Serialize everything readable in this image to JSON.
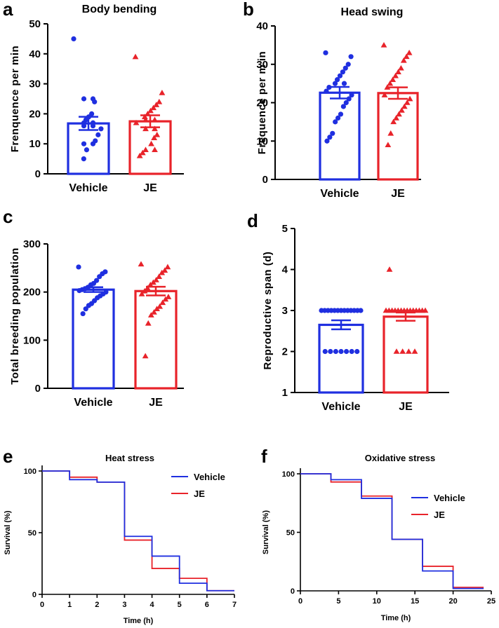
{
  "colors": {
    "vehicle": "#1f2fe0",
    "je": "#e8232a",
    "axis": "#000000"
  },
  "chart_data": [
    {
      "panel": "a",
      "type": "bar",
      "title": "Body bending",
      "ylabel": "Frenquence per min",
      "xlabel": "",
      "categories": [
        "Vehicle",
        "JE"
      ],
      "ylim": [
        0,
        50
      ],
      "yticks": [
        0,
        10,
        20,
        30,
        40,
        50
      ],
      "bars": [
        {
          "name": "Vehicle",
          "mean": 16.8,
          "sem": 2.2,
          "points": [
            45,
            25,
            25,
            24,
            20,
            19,
            18,
            17,
            17,
            16,
            16,
            15,
            13,
            11,
            10,
            10,
            8,
            5
          ]
        },
        {
          "name": "JE",
          "mean": 17.5,
          "sem": 2.0,
          "points": [
            39,
            27,
            24,
            23,
            22,
            21,
            20,
            19,
            18,
            18,
            17,
            15,
            15,
            13,
            12,
            10,
            8,
            8,
            7,
            6
          ]
        }
      ]
    },
    {
      "panel": "b",
      "type": "bar",
      "title": "Head swing",
      "ylabel": "Frequence per m in",
      "xlabel": "",
      "categories": [
        "Vehicle",
        "JE"
      ],
      "ylim": [
        0,
        40
      ],
      "yticks": [
        0,
        10,
        20,
        30,
        40
      ],
      "bars": [
        {
          "name": "Vehicle",
          "mean": 22.6,
          "sem": 1.5,
          "points": [
            33,
            32,
            30,
            29,
            28,
            27,
            26,
            25,
            25,
            24,
            23,
            22,
            21,
            20,
            19,
            17,
            16,
            15,
            12,
            11,
            10
          ]
        },
        {
          "name": "JE",
          "mean": 22.5,
          "sem": 1.5,
          "points": [
            35,
            33,
            32,
            31,
            29,
            28,
            27,
            26,
            25,
            24,
            22,
            21,
            20,
            19,
            18,
            17,
            16,
            15,
            12,
            9
          ]
        }
      ]
    },
    {
      "panel": "c",
      "type": "bar",
      "title": "",
      "ylabel": "Total breeding population",
      "xlabel": "",
      "categories": [
        "Vehicle",
        "JE"
      ],
      "ylim": [
        0,
        300
      ],
      "yticks": [
        0,
        100,
        200,
        300
      ],
      "bars": [
        {
          "name": "Vehicle",
          "mean": 205,
          "sem": 5,
          "points": [
            252,
            242,
            238,
            232,
            224,
            218,
            215,
            210,
            207,
            205,
            203,
            200,
            196,
            192,
            188,
            182,
            176,
            172,
            165,
            155
          ]
        },
        {
          "name": "JE",
          "mean": 202,
          "sem": 9,
          "points": [
            258,
            252,
            245,
            240,
            232,
            225,
            220,
            215,
            208,
            202,
            196,
            190,
            185,
            178,
            170,
            165,
            158,
            152,
            135,
            67
          ]
        }
      ]
    },
    {
      "panel": "d",
      "type": "bar",
      "title": "",
      "ylabel": "Reproductive span (d)",
      "xlabel": "",
      "categories": [
        "Vehicle",
        "JE"
      ],
      "ylim": [
        1,
        5
      ],
      "yticks": [
        1,
        2,
        3,
        4,
        5
      ],
      "bars": [
        {
          "name": "Vehicle",
          "mean": 2.65,
          "sem": 0.11,
          "points": [
            3,
            3,
            3,
            3,
            3,
            3,
            3,
            3,
            3,
            3,
            3,
            3,
            3,
            2,
            2,
            2,
            2,
            2,
            2,
            2
          ]
        },
        {
          "name": "JE",
          "mean": 2.85,
          "sem": 0.1,
          "points": [
            4,
            3,
            3,
            3,
            3,
            3,
            3,
            3,
            3,
            3,
            3,
            3,
            3,
            3,
            3,
            2,
            2,
            2,
            2
          ]
        }
      ]
    },
    {
      "panel": "e",
      "type": "line",
      "title": "Heat stress",
      "xlabel": "Time (h)",
      "ylabel": "Survival (%)",
      "xlim": [
        0,
        7
      ],
      "xticks": [
        0,
        1,
        2,
        3,
        4,
        5,
        6,
        7
      ],
      "ylim": [
        0,
        100
      ],
      "yticks": [
        0,
        50,
        100
      ],
      "legend": "top-right",
      "series": [
        {
          "name": "Vehicle",
          "x": [
            0,
            1,
            2,
            3,
            4,
            5,
            6,
            7
          ],
          "y": [
            100,
            93,
            91,
            47,
            31,
            9,
            3,
            3
          ]
        },
        {
          "name": "JE",
          "x": [
            0,
            1,
            2,
            3,
            4,
            5,
            6,
            7
          ],
          "y": [
            100,
            95,
            91,
            44,
            21,
            13,
            3,
            3
          ]
        }
      ]
    },
    {
      "panel": "f",
      "type": "line",
      "title": "Oxidative stress",
      "xlabel": "Time (h)",
      "ylabel": "Survival (%)",
      "xlim": [
        0,
        25
      ],
      "xticks": [
        0,
        5,
        10,
        15,
        20,
        25
      ],
      "ylim": [
        0,
        100
      ],
      "yticks": [
        0,
        50,
        100
      ],
      "legend": "right",
      "series": [
        {
          "name": "Vehicle",
          "x": [
            0,
            4,
            8,
            12,
            16,
            20,
            24
          ],
          "y": [
            100,
            95,
            79,
            44,
            17,
            2,
            2
          ]
        },
        {
          "name": "JE",
          "x": [
            0,
            4,
            8,
            12,
            16,
            20,
            24
          ],
          "y": [
            100,
            93,
            81,
            44,
            21,
            3,
            3
          ]
        }
      ]
    }
  ]
}
